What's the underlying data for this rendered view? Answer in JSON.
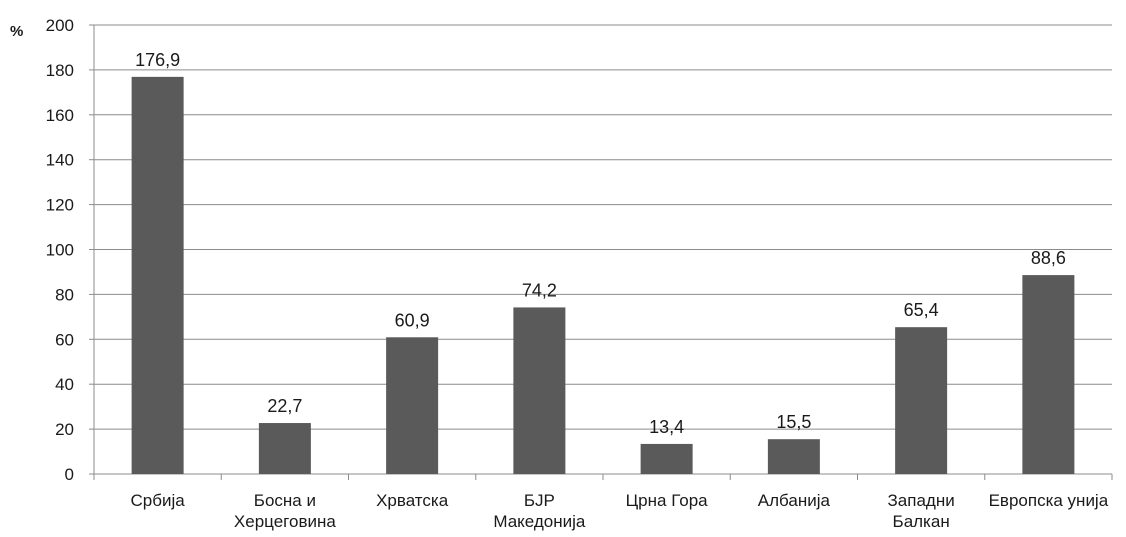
{
  "chart_data": {
    "type": "bar",
    "title": "",
    "xlabel": "",
    "ylabel": "%",
    "ylim": [
      0,
      200
    ],
    "yticks": [
      0,
      20,
      40,
      60,
      80,
      100,
      120,
      140,
      160,
      180,
      200
    ],
    "grid": true,
    "legend": "none",
    "bar_color": "#5a5a5a",
    "categories": [
      [
        "Србија"
      ],
      [
        "Босна и",
        "Херцеговина"
      ],
      [
        "Хрватска"
      ],
      [
        "БЈР",
        "Македонија"
      ],
      [
        "Црна Гора"
      ],
      [
        "Албанија"
      ],
      [
        "Западни",
        "Балкан"
      ],
      [
        "Европска унија"
      ]
    ],
    "values": [
      176.9,
      22.7,
      60.9,
      74.2,
      13.4,
      15.5,
      65.4,
      88.6
    ],
    "value_labels": [
      "176,9",
      "22,7",
      "60,9",
      "74,2",
      "13,4",
      "15,5",
      "65,4",
      "88,6"
    ]
  }
}
